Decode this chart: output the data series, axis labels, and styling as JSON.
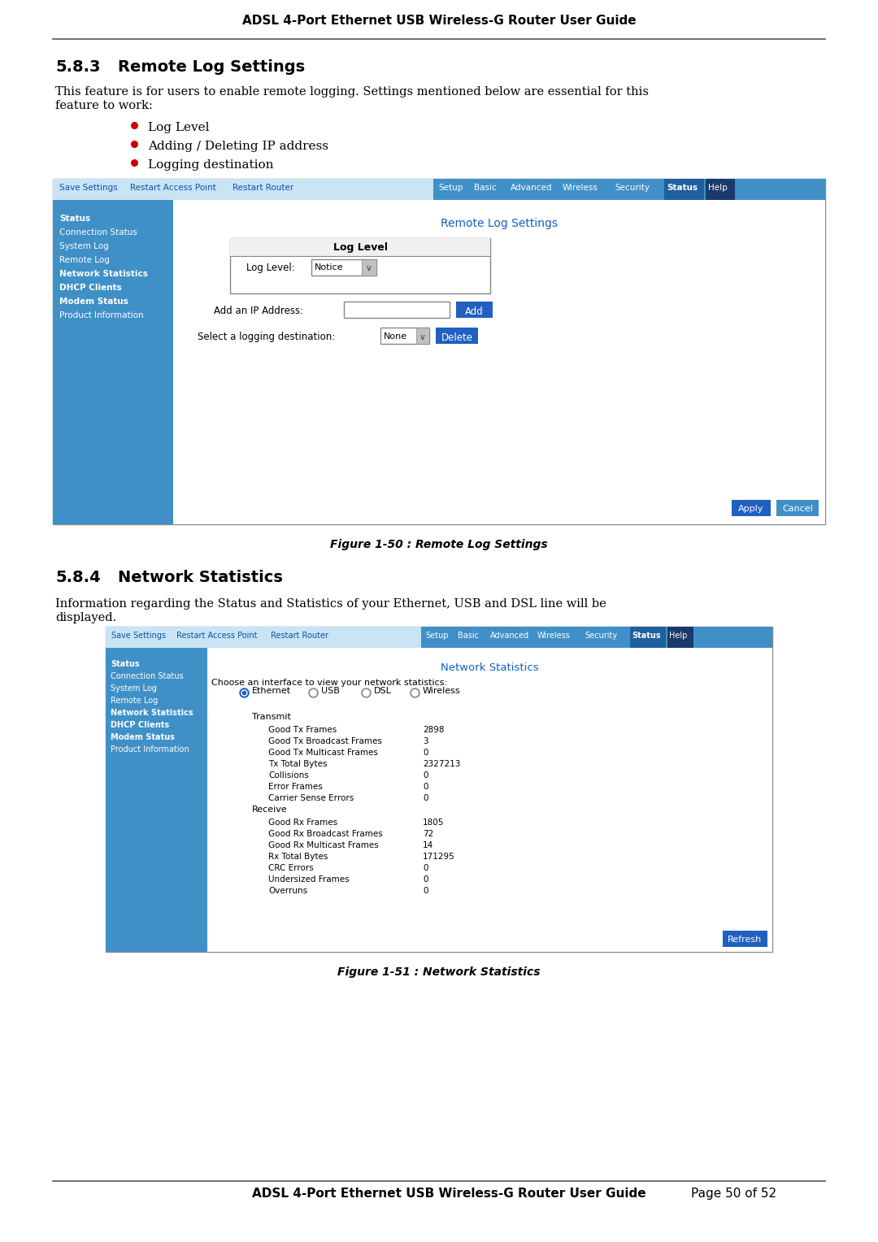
{
  "page_title": "ADSL 4-Port Ethernet USB Wireless-G Router User Guide",
  "page_footer": "ADSL 4-Port Ethernet USB Wireless-G Router User Guide",
  "page_number": "Page 50 of 52",
  "section_583_heading": "5.8.3",
  "section_583_heading2": "Remote Log Settings",
  "section_583_body1": "This feature is for users to enable remote logging. Settings mentioned below are essential for this",
  "section_583_body2": "feature to work:",
  "bullets_583": [
    "Log Level",
    "Adding / Deleting IP address",
    "Logging destination"
  ],
  "figure_583_caption": "Figure 1-50 : Remote Log Settings",
  "section_584_heading": "5.8.4",
  "section_584_heading2": "Network Statistics",
  "section_584_body1": "Information regarding the Status and Statistics of your Ethernet, USB and DSL line will be",
  "section_584_body2": "displayed.",
  "figure_584_caption": "Figure 1-51 : Network Statistics",
  "nav_items_left": [
    "Save Settings",
    "Restart Access Point",
    "Restart Router"
  ],
  "nav_items_right": [
    "Setup",
    "Basic",
    "Advanced",
    "Wireless",
    "Security",
    "Status",
    "Help"
  ],
  "sidebar_items": [
    "Status",
    "Connection Status",
    "System Log",
    "Remote Log",
    "Network Statistics",
    "DHCP Clients",
    "Modem Status",
    "Product Information"
  ],
  "sidebar_bold_583": [
    "Status",
    "Network Statistics",
    "DHCP Clients",
    "Modem Status"
  ],
  "color_nav_bar_bg": "#c8e4f5",
  "color_nav_bar_right_bg": "#4090c8",
  "color_status_active": "#1e5fa0",
  "color_sidebar_bg": "#4090c8",
  "color_blue_title": "#1060c0",
  "color_button_add": "#2060c0",
  "color_button_delete": "#2060c0",
  "color_button_apply": "#2060c0",
  "color_button_cancel": "#4090c8",
  "color_button_refresh": "#2060c0",
  "color_border": "#999999",
  "color_red_bullet": "#cc0000",
  "color_black": "#000000",
  "color_white": "#ffffff",
  "color_help_bg": "#1a3a6a",
  "transmit_data": [
    [
      "Good Tx Frames",
      "2898"
    ],
    [
      "Good Tx Broadcast Frames",
      "3"
    ],
    [
      "Good Tx Multicast Frames",
      "0"
    ],
    [
      "Tx Total Bytes",
      "2327213"
    ],
    [
      "Collisions",
      "0"
    ],
    [
      "Error Frames",
      "0"
    ],
    [
      "Carrier Sense Errors",
      "0"
    ]
  ],
  "receive_data": [
    [
      "Good Rx Frames",
      "1805"
    ],
    [
      "Good Rx Broadcast Frames",
      "72"
    ],
    [
      "Good Rx Multicast Frames",
      "14"
    ],
    [
      "Rx Total Bytes",
      "171295"
    ],
    [
      "CRC Errors",
      "0"
    ],
    [
      "Undersized Frames",
      "0"
    ],
    [
      "Overruns",
      "0"
    ]
  ]
}
